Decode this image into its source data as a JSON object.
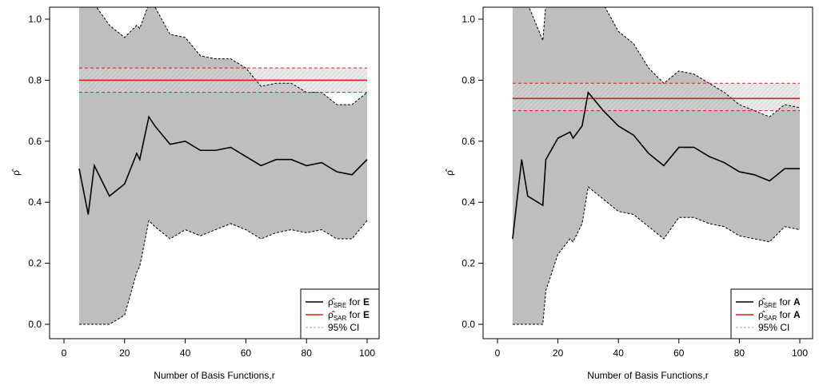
{
  "chart_data": [
    {
      "type": "line",
      "panel": "left",
      "xlabel": "Number of Basis Functions,r",
      "ylabel": "ρ̂",
      "xlim": [
        0,
        100
      ],
      "ylim": [
        0,
        1
      ],
      "xticks": [
        "0",
        "20",
        "40",
        "60",
        "80",
        "100"
      ],
      "yticks": [
        "0.0",
        "0.2",
        "0.4",
        "0.6",
        "0.8",
        "1.0"
      ],
      "legend_position": "bottom-right",
      "legend": [
        {
          "symbol": "ρ̂",
          "sub": "SRE",
          "text": " for ",
          "bold": "E",
          "style": "solid",
          "color": "#000000"
        },
        {
          "symbol": "ρ̂",
          "sub": "SAR",
          "text": " for ",
          "bold": "E",
          "style": "solid",
          "color": "#e31a1c"
        },
        {
          "symbol": "",
          "sub": "",
          "text": "95% CI",
          "bold": "",
          "style": "dashed",
          "color": "#aaaaaa"
        }
      ],
      "series": [
        {
          "name": "rho_SRE",
          "x": [
            5,
            8,
            10,
            15,
            20,
            24,
            25,
            28,
            30,
            35,
            40,
            45,
            50,
            55,
            60,
            65,
            70,
            75,
            80,
            85,
            90,
            95,
            100
          ],
          "values": [
            0.51,
            0.36,
            0.52,
            0.42,
            0.46,
            0.56,
            0.54,
            0.68,
            0.65,
            0.59,
            0.6,
            0.57,
            0.57,
            0.58,
            0.55,
            0.52,
            0.54,
            0.54,
            0.52,
            0.53,
            0.5,
            0.49,
            0.54
          ],
          "ci_upper": [
            1.05,
            1.05,
            1.05,
            0.98,
            0.94,
            0.98,
            0.97,
            1.05,
            1.04,
            0.95,
            0.94,
            0.88,
            0.87,
            0.87,
            0.84,
            0.78,
            0.79,
            0.79,
            0.76,
            0.76,
            0.72,
            0.72,
            0.76
          ],
          "ci_lower": [
            0.0,
            0.0,
            0.0,
            0.0,
            0.03,
            0.17,
            0.19,
            0.34,
            0.32,
            0.28,
            0.31,
            0.29,
            0.31,
            0.33,
            0.31,
            0.28,
            0.3,
            0.31,
            0.3,
            0.31,
            0.28,
            0.28,
            0.34
          ]
        },
        {
          "name": "rho_SAR",
          "x": [
            5,
            100
          ],
          "values": [
            0.8,
            0.8
          ],
          "ci_upper": [
            0.84,
            0.84
          ],
          "ci_lower": [
            0.76,
            0.76
          ]
        }
      ]
    },
    {
      "type": "line",
      "panel": "right",
      "xlabel": "Number of Basis Functions,r",
      "ylabel": "ρ̂",
      "xlim": [
        0,
        100
      ],
      "ylim": [
        0,
        1
      ],
      "xticks": [
        "0",
        "20",
        "40",
        "60",
        "80",
        "100"
      ],
      "yticks": [
        "0.0",
        "0.2",
        "0.4",
        "0.6",
        "0.8",
        "1.0"
      ],
      "legend_position": "bottom-right",
      "legend": [
        {
          "symbol": "ρ̂",
          "sub": "SRE",
          "text": " for ",
          "bold": "A",
          "style": "solid",
          "color": "#000000"
        },
        {
          "symbol": "ρ̂",
          "sub": "SAR",
          "text": " for ",
          "bold": "A",
          "style": "solid",
          "color": "#e31a1c"
        },
        {
          "symbol": "",
          "sub": "",
          "text": "95% CI",
          "bold": "",
          "style": "dashed",
          "color": "#aaaaaa"
        }
      ],
      "series": [
        {
          "name": "rho_SRE",
          "x": [
            5,
            8,
            10,
            15,
            16,
            20,
            24,
            25,
            28,
            30,
            35,
            40,
            45,
            50,
            55,
            60,
            65,
            70,
            75,
            80,
            85,
            90,
            95,
            100
          ],
          "values": [
            0.28,
            0.54,
            0.42,
            0.39,
            0.54,
            0.61,
            0.63,
            0.61,
            0.65,
            0.76,
            0.7,
            0.65,
            0.62,
            0.56,
            0.52,
            0.58,
            0.58,
            0.55,
            0.53,
            0.5,
            0.49,
            0.47,
            0.51,
            0.51
          ],
          "ci_upper": [
            1.05,
            1.05,
            1.05,
            0.93,
            1.05,
            1.05,
            1.05,
            1.05,
            1.05,
            1.05,
            1.05,
            0.96,
            0.92,
            0.84,
            0.79,
            0.83,
            0.82,
            0.79,
            0.76,
            0.72,
            0.7,
            0.68,
            0.72,
            0.71
          ],
          "ci_lower": [
            0.0,
            0.0,
            0.0,
            0.0,
            0.11,
            0.23,
            0.28,
            0.27,
            0.33,
            0.45,
            0.41,
            0.37,
            0.36,
            0.32,
            0.28,
            0.35,
            0.35,
            0.33,
            0.32,
            0.29,
            0.28,
            0.27,
            0.32,
            0.31
          ]
        },
        {
          "name": "rho_SAR",
          "x": [
            5,
            100
          ],
          "values": [
            0.74,
            0.74
          ],
          "ci_upper": [
            0.79,
            0.79
          ],
          "ci_lower": [
            0.7,
            0.7
          ]
        }
      ]
    }
  ]
}
